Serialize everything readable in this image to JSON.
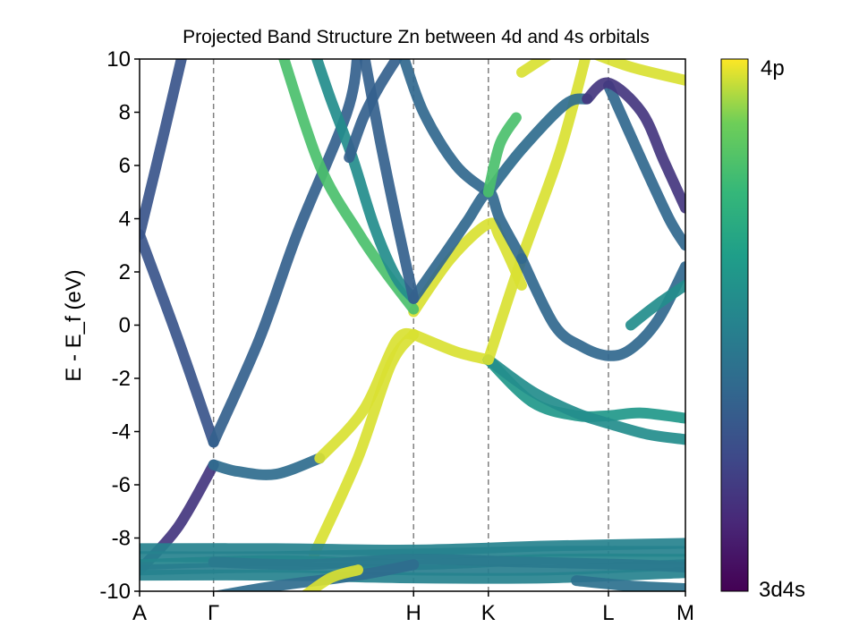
{
  "chart_data": {
    "type": "line",
    "title": "Projected Band Structure Zn between 4d and 4s orbitals",
    "ylabel": "E - E_f (eV)",
    "xlabel": "",
    "ylim": [
      -10,
      10
    ],
    "y_ticks": [
      "10",
      "8",
      "6",
      "4",
      "2",
      "0",
      "-2",
      "-4",
      "-6",
      "-8",
      "-10"
    ],
    "y_tick_values": [
      10,
      8,
      6,
      4,
      2,
      0,
      -2,
      -4,
      -6,
      -8,
      -10
    ],
    "k_points": [
      {
        "label": "A",
        "k": 0.0
      },
      {
        "label": "Γ",
        "k": 0.1355
      },
      {
        "label": "H",
        "k": 0.502
      },
      {
        "label": "K",
        "k": 0.639
      },
      {
        "label": "L",
        "k": 0.859
      },
      {
        "label": "M",
        "k": 1.0
      }
    ],
    "grid": "dashed vertical lines at high-symmetry points",
    "colorbar": {
      "colormap": "viridis",
      "top_label": "4p",
      "bottom_label": "3d4s"
    },
    "series": [
      {
        "c": 0.3,
        "points": [
          [
            0.0,
            3.4
          ],
          [
            0.04,
            6.8
          ],
          [
            0.08,
            10.3
          ]
        ]
      },
      {
        "c": 0.3,
        "points": [
          [
            0.0,
            3.4
          ],
          [
            0.07,
            -0.5
          ],
          [
            0.1355,
            -4.4
          ]
        ]
      },
      {
        "c": 0.35,
        "points": [
          [
            0.1355,
            -4.4
          ],
          [
            0.22,
            -0.5
          ],
          [
            0.29,
            3.5
          ],
          [
            0.38,
            8.0
          ],
          [
            0.4,
            10.3
          ]
        ]
      },
      {
        "c": 0.18,
        "points": [
          [
            0.1355,
            -5.25
          ],
          [
            0.07,
            -7.6
          ],
          [
            0.0,
            -9.2
          ]
        ]
      },
      {
        "c": 0.4,
        "points": [
          [
            0.1355,
            -5.25
          ],
          [
            0.18,
            -5.5
          ],
          [
            0.25,
            -5.6
          ],
          [
            0.33,
            -5.0
          ]
        ]
      },
      {
        "c": 0.97,
        "points": [
          [
            0.33,
            -5.0
          ],
          [
            0.41,
            -3.2
          ],
          [
            0.47,
            -0.6
          ],
          [
            0.502,
            -0.35
          ]
        ]
      },
      {
        "c": 0.97,
        "points": [
          [
            0.32,
            -8.6
          ],
          [
            0.4,
            -5.0
          ],
          [
            0.46,
            -1.5
          ],
          [
            0.502,
            -0.35
          ]
        ]
      },
      {
        "c": 0.97,
        "points": [
          [
            0.502,
            -0.35
          ],
          [
            0.58,
            -1.0
          ],
          [
            0.639,
            -1.3
          ]
        ]
      },
      {
        "c": 0.6,
        "points": [
          [
            0.639,
            -1.3
          ],
          [
            0.72,
            -2.9
          ],
          [
            0.8,
            -3.4
          ],
          [
            0.86,
            -3.4
          ],
          [
            0.92,
            -3.3
          ],
          [
            1.0,
            -3.5
          ]
        ]
      },
      {
        "c": 0.55,
        "points": [
          [
            0.639,
            -1.3
          ],
          [
            0.72,
            -2.5
          ],
          [
            0.8,
            -3.3
          ],
          [
            0.86,
            -3.7
          ],
          [
            0.93,
            -4.1
          ],
          [
            1.0,
            -4.3
          ]
        ]
      },
      {
        "c": 0.97,
        "points": [
          [
            0.639,
            -1.3
          ],
          [
            0.7,
            2.5
          ],
          [
            0.77,
            6.5
          ],
          [
            0.82,
            10.3
          ]
        ]
      },
      {
        "c": 0.97,
        "points": [
          [
            0.502,
            0.5
          ],
          [
            0.57,
            2.5
          ],
          [
            0.639,
            3.8
          ],
          [
            0.66,
            3.3
          ],
          [
            0.7,
            1.5
          ]
        ]
      },
      {
        "c": 0.8,
        "points": [
          [
            0.26,
            10.3
          ],
          [
            0.33,
            6.0
          ],
          [
            0.4,
            3.5
          ],
          [
            0.45,
            2.0
          ],
          [
            0.502,
            0.6
          ]
        ]
      },
      {
        "c": 0.55,
        "points": [
          [
            0.32,
            10.3
          ],
          [
            0.35,
            8.5
          ],
          [
            0.39,
            6.3
          ],
          [
            0.43,
            3.7
          ],
          [
            0.47,
            1.8
          ],
          [
            0.502,
            1.0
          ]
        ]
      },
      {
        "c": 0.35,
        "points": [
          [
            0.384,
            6.3
          ],
          [
            0.41,
            7.8
          ],
          [
            0.44,
            9.0
          ],
          [
            0.48,
            10.3
          ]
        ]
      },
      {
        "c": 0.38,
        "points": [
          [
            0.502,
            1.0
          ],
          [
            0.56,
            2.7
          ],
          [
            0.6,
            3.9
          ],
          [
            0.639,
            5.0
          ],
          [
            0.66,
            4.0
          ],
          [
            0.7,
            2.5
          ]
        ]
      },
      {
        "c": 0.35,
        "points": [
          [
            0.502,
            1.0
          ],
          [
            0.47,
            4.0
          ],
          [
            0.44,
            7.0
          ],
          [
            0.41,
            10.3
          ]
        ]
      },
      {
        "c": 0.38,
        "points": [
          [
            0.48,
            10.3
          ],
          [
            0.52,
            8.0
          ],
          [
            0.58,
            6.0
          ],
          [
            0.639,
            5.0
          ]
        ]
      },
      {
        "c": 0.4,
        "points": [
          [
            0.639,
            5.0
          ],
          [
            0.7,
            6.6
          ],
          [
            0.78,
            8.3
          ],
          [
            0.82,
            8.5
          ]
        ]
      },
      {
        "c": 0.8,
        "points": [
          [
            0.639,
            5.0
          ],
          [
            0.66,
            6.8
          ],
          [
            0.69,
            7.8
          ]
        ]
      },
      {
        "c": 0.38,
        "points": [
          [
            0.7,
            2.5
          ],
          [
            0.76,
            0.0
          ],
          [
            0.81,
            -0.8
          ],
          [
            0.859,
            -1.15
          ],
          [
            0.9,
            -0.9
          ],
          [
            0.95,
            0.2
          ],
          [
            1.0,
            2.2
          ]
        ]
      },
      {
        "c": 0.38,
        "points": [
          [
            0.859,
            9.0
          ],
          [
            0.92,
            6.2
          ],
          [
            0.97,
            4.0
          ],
          [
            1.0,
            3.0
          ]
        ]
      },
      {
        "c": 0.18,
        "points": [
          [
            0.82,
            8.5
          ],
          [
            0.859,
            9.1
          ],
          [
            0.92,
            8.0
          ],
          [
            0.96,
            6.2
          ],
          [
            1.0,
            4.4
          ]
        ]
      },
      {
        "c": 0.55,
        "points": [
          [
            0.9,
            0.0
          ],
          [
            0.95,
            0.8
          ],
          [
            1.0,
            1.5
          ]
        ]
      },
      {
        "c": 0.97,
        "points": [
          [
            0.82,
            10.3
          ],
          [
            0.9,
            9.7
          ],
          [
            1.0,
            9.2
          ]
        ]
      },
      {
        "c": 0.97,
        "points": [
          [
            0.7,
            9.5
          ],
          [
            0.76,
            10.3
          ]
        ]
      },
      {
        "c": 0.5,
        "points": [
          [
            0.0,
            -8.4
          ],
          [
            0.25,
            -8.4
          ],
          [
            0.5,
            -8.45
          ],
          [
            0.75,
            -8.3
          ],
          [
            1.0,
            -8.2
          ]
        ]
      },
      {
        "c": 0.5,
        "points": [
          [
            0.0,
            -8.7
          ],
          [
            0.25,
            -8.7
          ],
          [
            0.5,
            -8.6
          ],
          [
            0.75,
            -8.5
          ],
          [
            1.0,
            -8.5
          ]
        ]
      },
      {
        "c": 0.52,
        "points": [
          [
            0.0,
            -9.0
          ],
          [
            0.25,
            -8.85
          ],
          [
            0.5,
            -9.0
          ],
          [
            0.75,
            -8.8
          ],
          [
            1.0,
            -8.8
          ]
        ]
      },
      {
        "c": 0.48,
        "points": [
          [
            0.0,
            -9.2
          ],
          [
            0.25,
            -9.1
          ],
          [
            0.5,
            -9.2
          ],
          [
            0.75,
            -9.2
          ],
          [
            1.0,
            -9.0
          ]
        ]
      },
      {
        "c": 0.5,
        "points": [
          [
            0.0,
            -9.4
          ],
          [
            0.25,
            -9.4
          ],
          [
            0.5,
            -9.5
          ],
          [
            0.75,
            -9.5
          ],
          [
            1.0,
            -9.3
          ]
        ]
      },
      {
        "c": 0.46,
        "points": [
          [
            0.1355,
            -8.9
          ],
          [
            0.3,
            -9.0
          ],
          [
            0.5,
            -8.8
          ],
          [
            0.7,
            -8.9
          ],
          [
            0.9,
            -9.0
          ],
          [
            1.0,
            -9.1
          ]
        ]
      },
      {
        "c": 0.4,
        "points": [
          [
            0.1355,
            -10.2
          ],
          [
            0.25,
            -9.8
          ],
          [
            0.4,
            -9.4
          ],
          [
            0.502,
            -9.0
          ]
        ]
      },
      {
        "c": 0.97,
        "points": [
          [
            0.3,
            -10.2
          ],
          [
            0.35,
            -9.5
          ],
          [
            0.4,
            -9.2
          ]
        ]
      },
      {
        "c": 0.42,
        "points": [
          [
            0.8,
            -9.6
          ],
          [
            0.9,
            -9.8
          ],
          [
            1.0,
            -9.9
          ]
        ]
      }
    ]
  }
}
